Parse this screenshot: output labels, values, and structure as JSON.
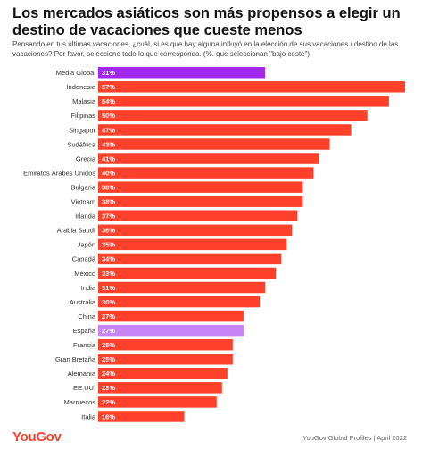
{
  "title": "Los mercados asiáticos son más propensos a elegir un destino de vacaciones que cueste menos",
  "subtitle": "Pensando en tus últimas vacaciones, ¿cuál, si es que hay alguna influyó en la elección de sus vacaciones / destino de las vacaciones? Por favor, seleccione todo lo que corresponda. (%. que seleccionan \"bajo coste\")",
  "footer": {
    "logo": "YouGov",
    "source": "YouGov Global Profiles | April 2022"
  },
  "colors": {
    "default_bar": "#ff412c",
    "global_bar": "#a126ee",
    "spain_bar": "#c884f7",
    "label_text": "#ffffff"
  },
  "chart_data": {
    "type": "bar",
    "orientation": "horizontal",
    "xlim": [
      0,
      57
    ],
    "categories": [
      "Media Global",
      "Indonesia",
      "Malasia",
      "Filipinas",
      "Singapur",
      "Sudáfrica",
      "Grecia",
      "Emiratos Árabes Unidos",
      "Bulgaria",
      "Vietnam",
      "Irlanda",
      "Arabia Saudí",
      "Japón",
      "Canadá",
      "México",
      "India",
      "Australia",
      "China",
      "España",
      "Francia",
      "Gran Bretaña",
      "Alemania",
      "EE.UU.",
      "Marruecos",
      "Italia"
    ],
    "values": [
      31,
      57,
      54,
      50,
      47,
      43,
      41,
      40,
      38,
      38,
      37,
      36,
      35,
      34,
      33,
      31,
      30,
      27,
      27,
      25,
      25,
      24,
      23,
      22,
      16
    ],
    "value_labels": [
      "31%",
      "57%",
      "54%",
      "50%",
      "47%",
      "43%",
      "41%",
      "40%",
      "38%",
      "38%",
      "37%",
      "36%",
      "35%",
      "34%",
      "33%",
      "31%",
      "30%",
      "27%",
      "27%",
      "25%",
      "25%",
      "24%",
      "23%",
      "22%",
      "16%"
    ],
    "highlights": {
      "Media Global": "global",
      "España": "spain"
    }
  }
}
